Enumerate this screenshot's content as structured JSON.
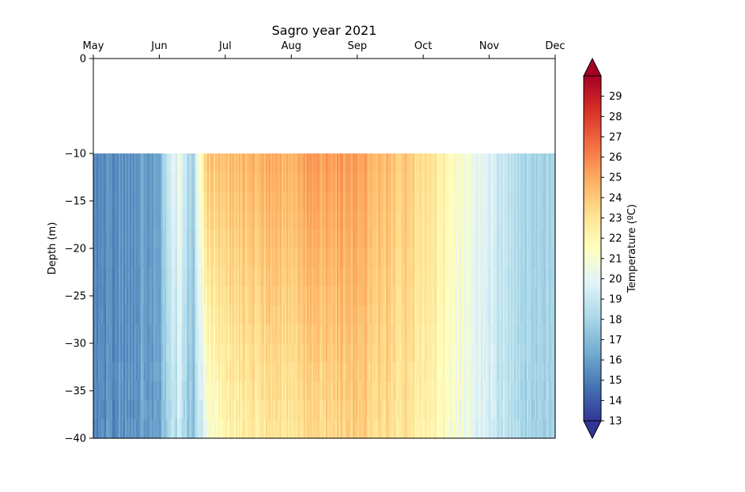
{
  "chart_data": {
    "type": "heatmap",
    "title": "Sagro year 2021",
    "ylabel": "Depth (m)",
    "colorbar_label": "Temperature (ºC)",
    "x_ticks": [
      "May",
      "Jun",
      "Jul",
      "Aug",
      "Sep",
      "Oct",
      "Nov",
      "Dec"
    ],
    "x_axis_position": "top",
    "y_ticks": [
      0,
      -10,
      -15,
      -20,
      -25,
      -30,
      -35,
      -40
    ],
    "ylim": [
      -40,
      0
    ],
    "data_depth_range": [
      -40,
      -10
    ],
    "colorbar_ticks": [
      13,
      14,
      15,
      16,
      17,
      18,
      19,
      20,
      21,
      22,
      23,
      24,
      25,
      26,
      27,
      28,
      29
    ],
    "colorbar_range": [
      13,
      30
    ],
    "colormap": "RdYlBu_r",
    "colorbar_extend": "both",
    "colorbar_extend_low_color": "#313695",
    "colorbar_extend_high_color": "#a50026",
    "surface_temperature_profile": {
      "months": [
        0,
        0.5,
        1.0,
        1.1,
        1.3,
        1.5,
        1.7,
        2.0,
        2.5,
        3.0,
        3.5,
        4.0,
        4.5,
        5.0,
        5.5,
        6.0,
        6.5,
        7.0
      ],
      "temperature": [
        15.3,
        15.8,
        16.3,
        18.5,
        20.5,
        17.5,
        24.0,
        24.3,
        24.6,
        25.0,
        25.6,
        25.2,
        24.5,
        23.5,
        21.5,
        19.5,
        18.3,
        17.6
      ]
    },
    "bottom_temperature_profile": {
      "months": [
        0,
        0.5,
        1.0,
        1.1,
        1.3,
        1.5,
        1.7,
        2.0,
        2.5,
        3.0,
        3.5,
        4.0,
        4.5,
        5.0,
        5.5,
        6.0,
        6.5,
        7.0
      ],
      "temperature": [
        15.3,
        15.8,
        16.3,
        17.5,
        19.0,
        16.8,
        20.5,
        22.0,
        22.5,
        23.0,
        23.5,
        23.6,
        23.3,
        22.5,
        21.0,
        19.2,
        18.2,
        17.6
      ]
    }
  }
}
